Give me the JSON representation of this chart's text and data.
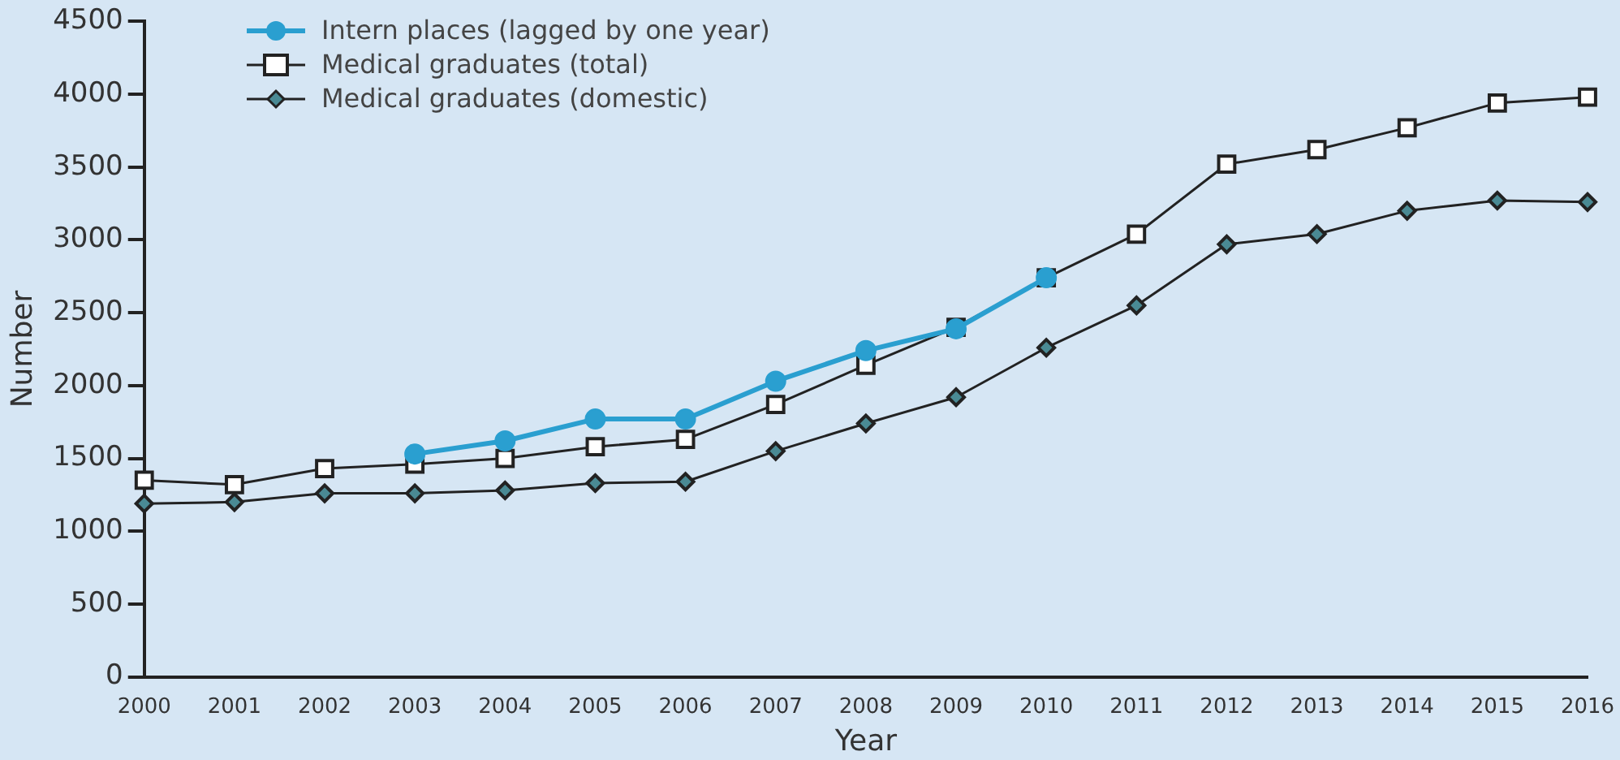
{
  "chart_data": {
    "type": "line",
    "xlabel": "Year",
    "ylabel": "Number",
    "categories": [
      "2000",
      "2001",
      "2002",
      "2003",
      "2004",
      "2005",
      "2006",
      "2007",
      "2008",
      "2009",
      "2010",
      "2011",
      "2012",
      "2013",
      "2014",
      "2015",
      "2016"
    ],
    "series": [
      {
        "name": "Intern places (lagged by one year)",
        "color": "#2a9fd0",
        "marker": "circle",
        "values": [
          null,
          null,
          null,
          1530,
          1620,
          1770,
          1770,
          2030,
          2240,
          2390,
          2740,
          null,
          null,
          null,
          null,
          null,
          null
        ]
      },
      {
        "name": "Medical graduates (total)",
        "color": "#222222",
        "marker": "square",
        "values": [
          1350,
          1320,
          1430,
          1460,
          1500,
          1580,
          1630,
          1870,
          2140,
          2400,
          2740,
          3040,
          3520,
          3620,
          3770,
          3940,
          3980
        ]
      },
      {
        "name": "Medical graduates (domestic)",
        "color": "#222222",
        "marker": "diamond",
        "values": [
          1190,
          1200,
          1260,
          1260,
          1280,
          1330,
          1340,
          1550,
          1740,
          1920,
          2260,
          2550,
          2970,
          3040,
          3200,
          3270,
          3260
        ]
      }
    ],
    "ylim": [
      0,
      4500
    ],
    "yticks": [
      0,
      500,
      1000,
      1500,
      2000,
      2500,
      3000,
      3500,
      4000,
      4500
    ],
    "grid": false,
    "legend": "top left"
  }
}
